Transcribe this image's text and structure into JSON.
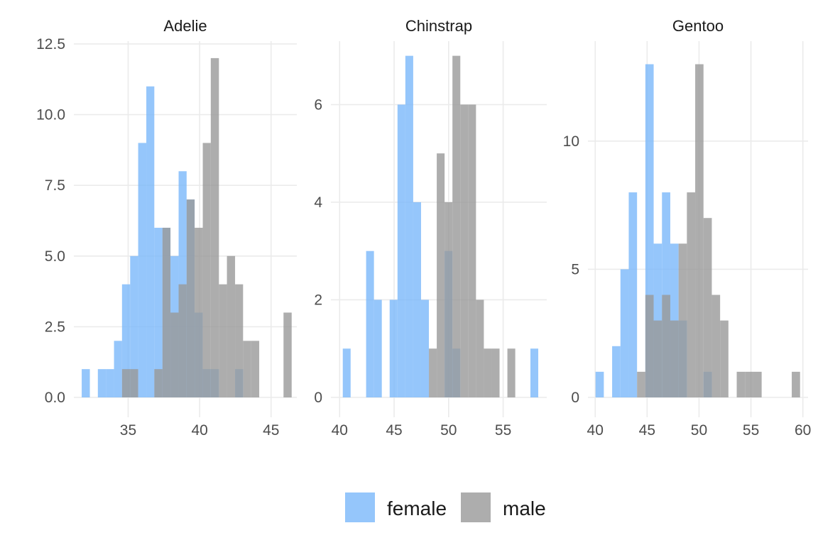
{
  "chart_data": {
    "type": "bar",
    "subtype": "faceted-histogram",
    "xlabel": "",
    "ylabel": "",
    "legend": {
      "position": "bottom",
      "items": [
        {
          "name": "female",
          "color": "#7ab8fa"
        },
        {
          "name": "male",
          "color": "#999999"
        }
      ]
    },
    "grid": true,
    "bar_opacity": 0.8,
    "series_colors": {
      "female": "#7ab8fa",
      "male": "#999999"
    },
    "facets": [
      {
        "title": "Adelie",
        "xlim": [
          31.2,
          46.8
        ],
        "ylim": [
          0,
          12.6
        ],
        "xticks": [
          35,
          40,
          45
        ],
        "xtick_labels": [
          "35",
          "40",
          "45"
        ],
        "yticks": [
          0,
          2.5,
          5,
          7.5,
          10,
          12.5
        ],
        "ytick_labels": [
          "0.0",
          "2.5",
          "5.0",
          "7.5",
          "10.0",
          "12.5"
        ],
        "series": [
          {
            "name": "female",
            "bins": [
              [
                31.75,
                32.32,
                1
              ],
              [
                32.88,
                33.44,
                1
              ],
              [
                33.44,
                34.01,
                1
              ],
              [
                34.01,
                34.57,
                2
              ],
              [
                34.57,
                35.14,
                4
              ],
              [
                35.14,
                35.7,
                5
              ],
              [
                35.7,
                36.27,
                9
              ],
              [
                36.27,
                36.83,
                11
              ],
              [
                36.83,
                37.4,
                6
              ],
              [
                37.4,
                37.96,
                6
              ],
              [
                37.96,
                38.53,
                5
              ],
              [
                38.53,
                39.09,
                8
              ],
              [
                39.09,
                39.65,
                7
              ],
              [
                39.65,
                40.22,
                3
              ],
              [
                40.22,
                40.78,
                1
              ],
              [
                40.78,
                41.35,
                1
              ],
              [
                42.48,
                43.04,
                1
              ]
            ]
          },
          {
            "name": "male",
            "bins": [
              [
                34.57,
                35.14,
                1
              ],
              [
                35.14,
                35.7,
                1
              ],
              [
                36.83,
                37.4,
                1
              ],
              [
                37.4,
                37.96,
                6
              ],
              [
                37.96,
                38.53,
                3
              ],
              [
                38.53,
                39.09,
                4
              ],
              [
                39.09,
                39.65,
                7
              ],
              [
                39.65,
                40.22,
                6
              ],
              [
                40.22,
                40.78,
                9
              ],
              [
                40.78,
                41.35,
                12
              ],
              [
                41.35,
                41.91,
                4
              ],
              [
                41.91,
                42.48,
                5
              ],
              [
                42.48,
                43.04,
                4
              ],
              [
                43.04,
                43.61,
                2
              ],
              [
                43.61,
                44.17,
                2
              ],
              [
                45.87,
                46.44,
                3
              ]
            ]
          }
        ]
      },
      {
        "title": "Chinstrap",
        "xlim": [
          39.2,
          59.0
        ],
        "ylim": [
          0,
          7.3
        ],
        "xticks": [
          40,
          45,
          50,
          55
        ],
        "xtick_labels": [
          "40",
          "45",
          "50",
          "55"
        ],
        "yticks": [
          0,
          2,
          4,
          6
        ],
        "ytick_labels": [
          "0",
          "2",
          "4",
          "6"
        ],
        "series": [
          {
            "name": "female",
            "bins": [
              [
                40.29,
                41.01,
                1
              ],
              [
                42.43,
                43.15,
                3
              ],
              [
                43.15,
                43.87,
                2
              ],
              [
                44.59,
                45.31,
                2
              ],
              [
                45.31,
                46.03,
                6
              ],
              [
                46.03,
                46.75,
                7
              ],
              [
                46.75,
                47.47,
                4
              ],
              [
                47.47,
                48.19,
                2
              ],
              [
                49.63,
                50.35,
                3
              ],
              [
                50.35,
                51.07,
                1
              ],
              [
                57.5,
                58.22,
                1
              ]
            ]
          },
          {
            "name": "male",
            "bins": [
              [
                48.19,
                48.91,
                1
              ],
              [
                48.91,
                49.63,
                5
              ],
              [
                49.63,
                50.35,
                4
              ],
              [
                50.35,
                51.07,
                7
              ],
              [
                51.07,
                51.79,
                6
              ],
              [
                51.79,
                52.51,
                6
              ],
              [
                52.51,
                53.23,
                2
              ],
              [
                53.23,
                53.95,
                1
              ],
              [
                53.95,
                54.67,
                1
              ],
              [
                55.39,
                56.11,
                1
              ]
            ]
          }
        ]
      },
      {
        "title": "Gentoo",
        "xlim": [
          39.3,
          60.5
        ],
        "ylim": [
          0,
          13.9
        ],
        "xticks": [
          40,
          45,
          50,
          55,
          60
        ],
        "xtick_labels": [
          "40",
          "45",
          "50",
          "55",
          "60"
        ],
        "yticks": [
          0,
          5,
          10
        ],
        "ytick_labels": [
          "0",
          "5",
          "10"
        ],
        "series": [
          {
            "name": "female",
            "bins": [
              [
                40.03,
                40.83,
                1
              ],
              [
                41.63,
                42.43,
                2
              ],
              [
                42.43,
                43.23,
                5
              ],
              [
                43.23,
                44.03,
                8
              ],
              [
                44.83,
                45.63,
                13
              ],
              [
                45.63,
                46.43,
                6
              ],
              [
                46.43,
                47.23,
                8
              ],
              [
                47.23,
                48.03,
                6
              ],
              [
                48.03,
                48.83,
                3
              ],
              [
                50.43,
                51.23,
                1
              ]
            ]
          },
          {
            "name": "male",
            "bins": [
              [
                44.03,
                44.83,
                1
              ],
              [
                44.83,
                45.63,
                4
              ],
              [
                45.63,
                46.43,
                3
              ],
              [
                46.43,
                47.23,
                4
              ],
              [
                47.23,
                48.03,
                3
              ],
              [
                48.03,
                48.83,
                6
              ],
              [
                48.83,
                49.63,
                8
              ],
              [
                49.63,
                50.43,
                13
              ],
              [
                50.43,
                51.23,
                7
              ],
              [
                51.23,
                52.03,
                4
              ],
              [
                52.03,
                52.83,
                3
              ],
              [
                53.63,
                54.43,
                1
              ],
              [
                54.43,
                55.23,
                1
              ],
              [
                55.23,
                56.03,
                1
              ],
              [
                58.93,
                59.73,
                1
              ]
            ]
          }
        ]
      }
    ]
  }
}
